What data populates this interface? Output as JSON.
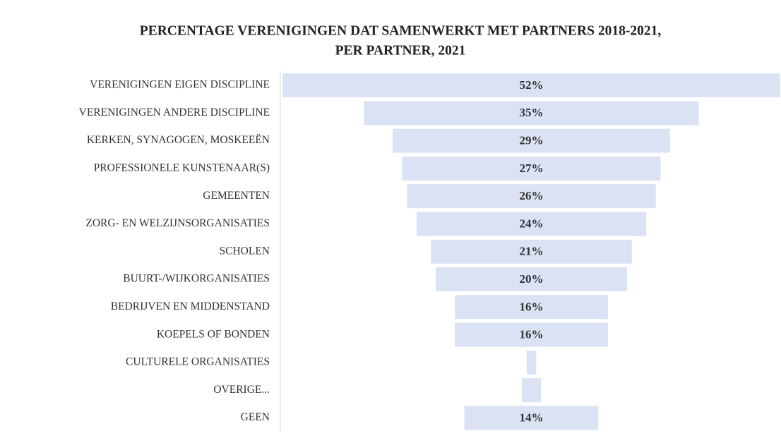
{
  "chart_data": {
    "type": "funnel",
    "title": [
      "PERCENTAGE VERENIGINGEN DAT SAMENWERKT MET PARTNERS 2018-2021,",
      "PER PARTNER, 2021"
    ],
    "categories": [
      "VERENIGINGEN EIGEN DISCIPLINE",
      "VERENIGINGEN ANDERE DISCIPLINE",
      "KERKEN, SYNAGOGEN, MOSKEEËN",
      "PROFESSIONELE KUNSTENAAR(S)",
      "GEMEENTEN",
      "ZORG- EN WELZIJNSORGANISATIES",
      "SCHOLEN",
      "BUURT-/WIJKORGANISATIES",
      "BEDRIJVEN EN MIDDENSTAND",
      "KOEPELS OF BONDEN",
      "CULTURELE ORGANISATIES",
      "OVERIGE...",
      "GEEN"
    ],
    "values": [
      52,
      35,
      29,
      27,
      26,
      24,
      21,
      20,
      16,
      16,
      1,
      2,
      14
    ],
    "value_labels": [
      "52%",
      "35%",
      "29%",
      "27%",
      "26%",
      "24%",
      "21%",
      "20%",
      "16%",
      "16%",
      null,
      null,
      "14%"
    ],
    "color": "#dae2f3"
  }
}
